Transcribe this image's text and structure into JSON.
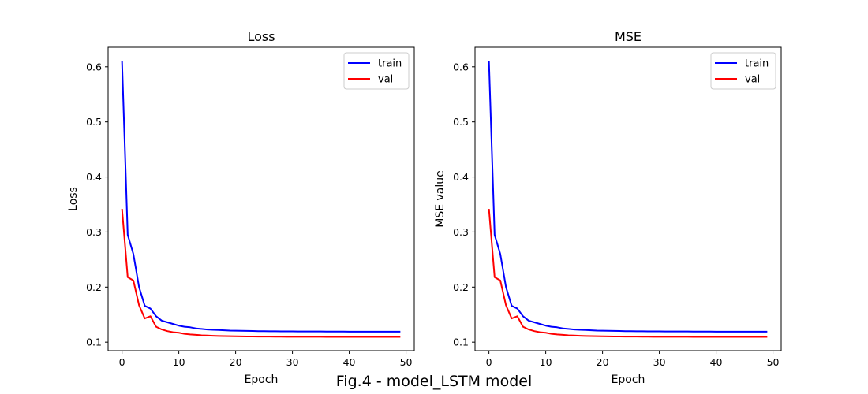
{
  "figure_caption": "Fig.4 - model_LSTM model",
  "chart_data": [
    {
      "type": "line",
      "title": "Loss",
      "xlabel": "Epoch",
      "ylabel": "Loss",
      "xlim": [
        -2.45,
        51.45
      ],
      "ylim": [
        0.0845,
        0.6355
      ],
      "xticks": [
        0,
        10,
        20,
        30,
        40,
        50
      ],
      "yticks": [
        0.1,
        0.2,
        0.3,
        0.4,
        0.5,
        0.6
      ],
      "xtick_labels": [
        "0",
        "10",
        "20",
        "30",
        "40",
        "50"
      ],
      "ytick_labels": [
        "0.1",
        "0.2",
        "0.3",
        "0.4",
        "0.5",
        "0.6"
      ],
      "legend": "top-right",
      "grid": false,
      "x": [
        0,
        1,
        2,
        3,
        4,
        5,
        6,
        7,
        8,
        9,
        10,
        11,
        12,
        13,
        14,
        15,
        16,
        17,
        18,
        19,
        20,
        21,
        22,
        23,
        24,
        25,
        26,
        27,
        28,
        29,
        30,
        31,
        32,
        33,
        34,
        35,
        36,
        37,
        38,
        39,
        40,
        41,
        42,
        43,
        44,
        45,
        46,
        47,
        48,
        49
      ],
      "series": [
        {
          "name": "train",
          "color": "#0000ff",
          "values": [
            0.61,
            0.295,
            0.26,
            0.2,
            0.166,
            0.161,
            0.147,
            0.139,
            0.136,
            0.133,
            0.13,
            0.128,
            0.127,
            0.125,
            0.124,
            0.123,
            0.1225,
            0.122,
            0.1215,
            0.121,
            0.1208,
            0.1206,
            0.1204,
            0.1202,
            0.12,
            0.1199,
            0.1198,
            0.1197,
            0.1196,
            0.1195,
            0.1195,
            0.1194,
            0.1194,
            0.1193,
            0.1193,
            0.1193,
            0.1192,
            0.1192,
            0.1192,
            0.1192,
            0.1191,
            0.1191,
            0.1191,
            0.1191,
            0.1191,
            0.119,
            0.119,
            0.119,
            0.119,
            0.119
          ]
        },
        {
          "name": "val",
          "color": "#ff0000",
          "values": [
            0.342,
            0.218,
            0.212,
            0.167,
            0.143,
            0.147,
            0.128,
            0.123,
            0.12,
            0.118,
            0.117,
            0.115,
            0.114,
            0.1133,
            0.1125,
            0.112,
            0.1115,
            0.1112,
            0.111,
            0.1108,
            0.1106,
            0.1104,
            0.1103,
            0.1102,
            0.1101,
            0.11,
            0.11,
            0.1099,
            0.1099,
            0.1098,
            0.1098,
            0.1098,
            0.1097,
            0.1097,
            0.1097,
            0.1097,
            0.1096,
            0.1096,
            0.1096,
            0.1096,
            0.1096,
            0.1096,
            0.1095,
            0.1095,
            0.1095,
            0.1095,
            0.1095,
            0.1095,
            0.1095,
            0.1095
          ]
        }
      ]
    },
    {
      "type": "line",
      "title": "MSE",
      "xlabel": "Epoch",
      "ylabel": "MSE value",
      "xlim": [
        -2.45,
        51.45
      ],
      "ylim": [
        0.0845,
        0.6355
      ],
      "xticks": [
        0,
        10,
        20,
        30,
        40,
        50
      ],
      "yticks": [
        0.1,
        0.2,
        0.3,
        0.4,
        0.5,
        0.6
      ],
      "xtick_labels": [
        "0",
        "10",
        "20",
        "30",
        "40",
        "50"
      ],
      "ytick_labels": [
        "0.1",
        "0.2",
        "0.3",
        "0.4",
        "0.5",
        "0.6"
      ],
      "legend": "top-right",
      "grid": false,
      "x": [
        0,
        1,
        2,
        3,
        4,
        5,
        6,
        7,
        8,
        9,
        10,
        11,
        12,
        13,
        14,
        15,
        16,
        17,
        18,
        19,
        20,
        21,
        22,
        23,
        24,
        25,
        26,
        27,
        28,
        29,
        30,
        31,
        32,
        33,
        34,
        35,
        36,
        37,
        38,
        39,
        40,
        41,
        42,
        43,
        44,
        45,
        46,
        47,
        48,
        49
      ],
      "series": [
        {
          "name": "train",
          "color": "#0000ff",
          "values": [
            0.61,
            0.295,
            0.26,
            0.2,
            0.166,
            0.161,
            0.147,
            0.139,
            0.136,
            0.133,
            0.13,
            0.128,
            0.127,
            0.125,
            0.124,
            0.123,
            0.1225,
            0.122,
            0.1215,
            0.121,
            0.1208,
            0.1206,
            0.1204,
            0.1202,
            0.12,
            0.1199,
            0.1198,
            0.1197,
            0.1196,
            0.1195,
            0.1195,
            0.1194,
            0.1194,
            0.1193,
            0.1193,
            0.1193,
            0.1192,
            0.1192,
            0.1192,
            0.1192,
            0.1191,
            0.1191,
            0.1191,
            0.1191,
            0.1191,
            0.119,
            0.119,
            0.119,
            0.119,
            0.119
          ]
        },
        {
          "name": "val",
          "color": "#ff0000",
          "values": [
            0.342,
            0.218,
            0.212,
            0.167,
            0.143,
            0.147,
            0.128,
            0.123,
            0.12,
            0.118,
            0.117,
            0.115,
            0.114,
            0.1133,
            0.1125,
            0.112,
            0.1115,
            0.1112,
            0.111,
            0.1108,
            0.1106,
            0.1104,
            0.1103,
            0.1102,
            0.1101,
            0.11,
            0.11,
            0.1099,
            0.1099,
            0.1098,
            0.1098,
            0.1098,
            0.1097,
            0.1097,
            0.1097,
            0.1097,
            0.1096,
            0.1096,
            0.1096,
            0.1096,
            0.1096,
            0.1096,
            0.1095,
            0.1095,
            0.1095,
            0.1095,
            0.1095,
            0.1095,
            0.1095,
            0.1095
          ]
        }
      ]
    }
  ]
}
